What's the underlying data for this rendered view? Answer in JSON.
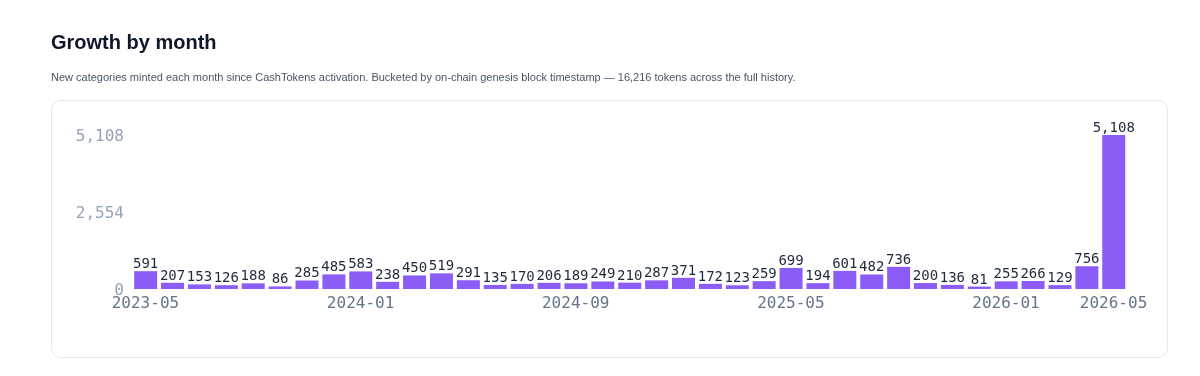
{
  "chart_data": {
    "type": "bar",
    "title": "Growth by month",
    "subtitle": "New categories minted each month since CashTokens activation. Bucketed by on-chain genesis block timestamp — 16,216 tokens across the full history.",
    "categories": [
      "2023-05",
      null,
      null,
      null,
      null,
      null,
      null,
      null,
      "2024-01",
      null,
      null,
      null,
      null,
      null,
      null,
      null,
      "2024-09",
      null,
      null,
      null,
      null,
      null,
      null,
      null,
      "2025-05",
      null,
      null,
      null,
      null,
      null,
      null,
      null,
      "2026-01",
      null,
      null,
      null,
      "2026-05"
    ],
    "values": [
      591,
      207,
      153,
      126,
      188,
      86,
      285,
      485,
      583,
      238,
      450,
      519,
      291,
      135,
      170,
      206,
      189,
      249,
      210,
      287,
      371,
      172,
      123,
      259,
      699,
      194,
      601,
      482,
      736,
      200,
      136,
      81,
      255,
      266,
      129,
      756,
      5108
    ],
    "value_labels": [
      "591",
      "207",
      "153",
      "126",
      "188",
      "86",
      "285",
      "485",
      "583",
      "238",
      "450",
      "519",
      "291",
      "135",
      "170",
      "206",
      "189",
      "249",
      "210",
      "287",
      "371",
      "172",
      "123",
      "259",
      "699",
      "194",
      "601",
      "482",
      "736",
      "200",
      "136",
      "81",
      "255",
      "266",
      "129",
      "756",
      "5,108"
    ],
    "color": "#8b5cf6",
    "ylim": [
      0,
      5108
    ],
    "yticks": [
      0,
      {
        "value": 2554,
        "label": "2,554"
      },
      {
        "value": 5108,
        "label": "5,108"
      }
    ],
    "grid": false,
    "legend": false
  }
}
